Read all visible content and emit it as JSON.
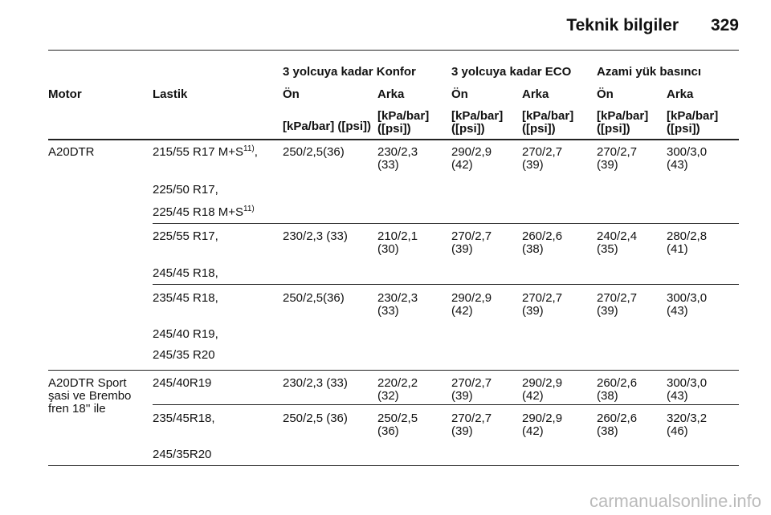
{
  "header": {
    "title": "Teknik bilgiler",
    "page": "329"
  },
  "table": {
    "group_headers": [
      "3 yolcuya kadar Konfor",
      "3 yolcuya kadar ECO",
      "Azami yük basıncı"
    ],
    "columns": [
      "Motor",
      "Lastik",
      "Ön",
      "Arka",
      "Ön",
      "Arka",
      "Ön",
      "Arka"
    ],
    "units": [
      "[kPa/bar] ([psi])",
      "[kPa/bar] ([psi])",
      "[kPa/bar] ([psi])",
      "[kPa/bar] ([psi])",
      "[kPa/bar] ([psi])",
      "[kPa/bar] ([psi])"
    ],
    "rows": [
      {
        "motor": "A20DTR",
        "tires": [
          {
            "text": "215/55 R17 M+S",
            "sup": "11)",
            "suffix": ","
          },
          {
            "text": "225/50 R17,"
          },
          {
            "text": "225/45 R18 M+S",
            "sup": "11)"
          }
        ],
        "values": [
          "250/2,5(36)",
          "230/2,3 (33)",
          "290/2,9 (42)",
          "270/2,7 (39)",
          "270/2,7 (39)",
          "300/3,0 (43)"
        ]
      },
      {
        "tires": [
          {
            "text": "225/55 R17,"
          },
          {
            "text": "245/45 R18,"
          }
        ],
        "values": [
          "230/2,3 (33)",
          "210/2,1 (30)",
          "270/2,7 (39)",
          "260/2,6 (38)",
          "240/2,4 (35)",
          "280/2,8 (41)"
        ]
      },
      {
        "tires": [
          {
            "text": "235/45 R18,"
          },
          {
            "text": "245/40 R19,"
          },
          {
            "text": "245/35 R20"
          }
        ],
        "values": [
          "250/2,5(36)",
          "230/2,3 (33)",
          "290/2,9 (42)",
          "270/2,7 (39)",
          "270/2,7 (39)",
          "300/3,0 (43)"
        ]
      },
      {
        "motor": "A20DTR Sport şasi ve Brembo fren 18'' ile",
        "tires": [
          {
            "text": "245/40R19"
          }
        ],
        "values": [
          "230/2,3 (33)",
          "220/2,2 (32)",
          "270/2,7 (39)",
          "290/2,9 (42)",
          "260/2,6 (38)",
          "300/3,0 (43)"
        ]
      },
      {
        "tires": [
          {
            "text": "235/45R18,"
          },
          {
            "text": "245/35R20"
          }
        ],
        "values": [
          "250/2,5 (36)",
          "250/2,5 (36)",
          "270/2,7 (39)",
          "290/2,9 (42)",
          "260/2,6 (38)",
          "320/3,2 (46)"
        ]
      }
    ]
  },
  "footer": {
    "watermark": "carmanualsonline.info"
  }
}
